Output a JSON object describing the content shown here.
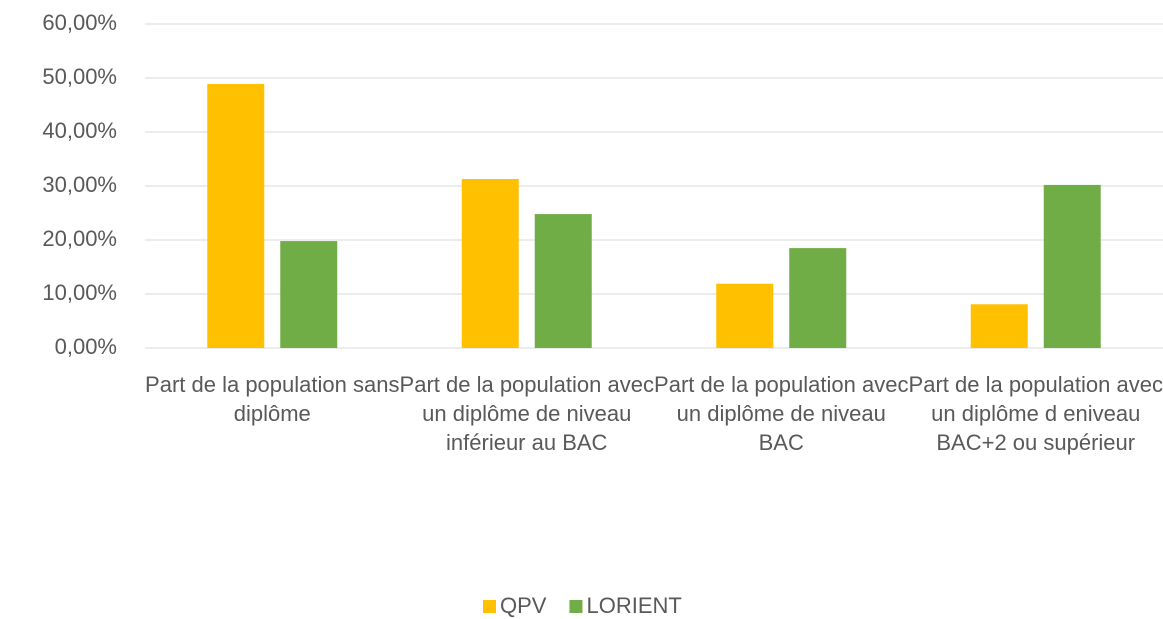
{
  "chart_data": {
    "type": "bar",
    "categories": [
      "Part de la population sans diplôme",
      "Part de la population avec un diplôme de niveau inférieur au BAC",
      "Part de la population avec un diplôme de niveau BAC",
      "Part de la population avec un diplôme d eniveau BAC+2 ou supérieur"
    ],
    "series": [
      {
        "name": "QPV",
        "color": "#ffc000",
        "values": [
          48.9,
          31.3,
          11.9,
          8.1
        ]
      },
      {
        "name": "LORIENT",
        "color": "#70ad47",
        "values": [
          19.8,
          24.8,
          18.5,
          30.2
        ]
      }
    ],
    "ylim": [
      0,
      60
    ],
    "yticks": [
      {
        "value": 0,
        "label": "0,00%"
      },
      {
        "value": 10,
        "label": "10,00%"
      },
      {
        "value": 20,
        "label": "20,00%"
      },
      {
        "value": 30,
        "label": "30,00%"
      },
      {
        "value": 40,
        "label": "40,00%"
      },
      {
        "value": 50,
        "label": "50,00%"
      },
      {
        "value": 60,
        "label": "60,00%"
      }
    ],
    "grid": true,
    "legend": "bottom"
  }
}
